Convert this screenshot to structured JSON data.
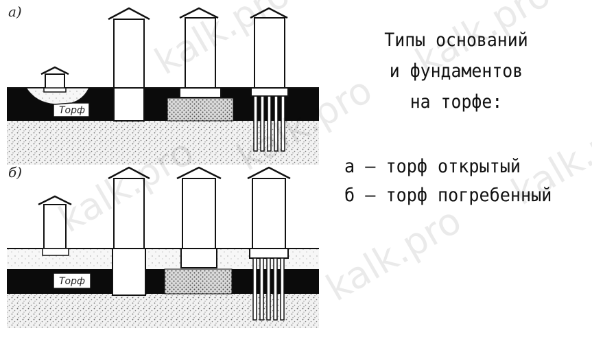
{
  "title_lines": [
    "Типы оснований",
    "и фундаментов",
    "на торфе:"
  ],
  "legend": {
    "a": "а – торф открытый",
    "b": "б – торф погребенный"
  },
  "panels": {
    "a": {
      "label": "а)",
      "peat_label": "Торф"
    },
    "b": {
      "label": "б)",
      "peat_label": "Торф"
    }
  },
  "watermark": "kalk.pro",
  "colors": {
    "peat": "#0b0b0b",
    "ink": "#111111",
    "paper": "#ffffff",
    "sand": "#bdbdbd"
  }
}
